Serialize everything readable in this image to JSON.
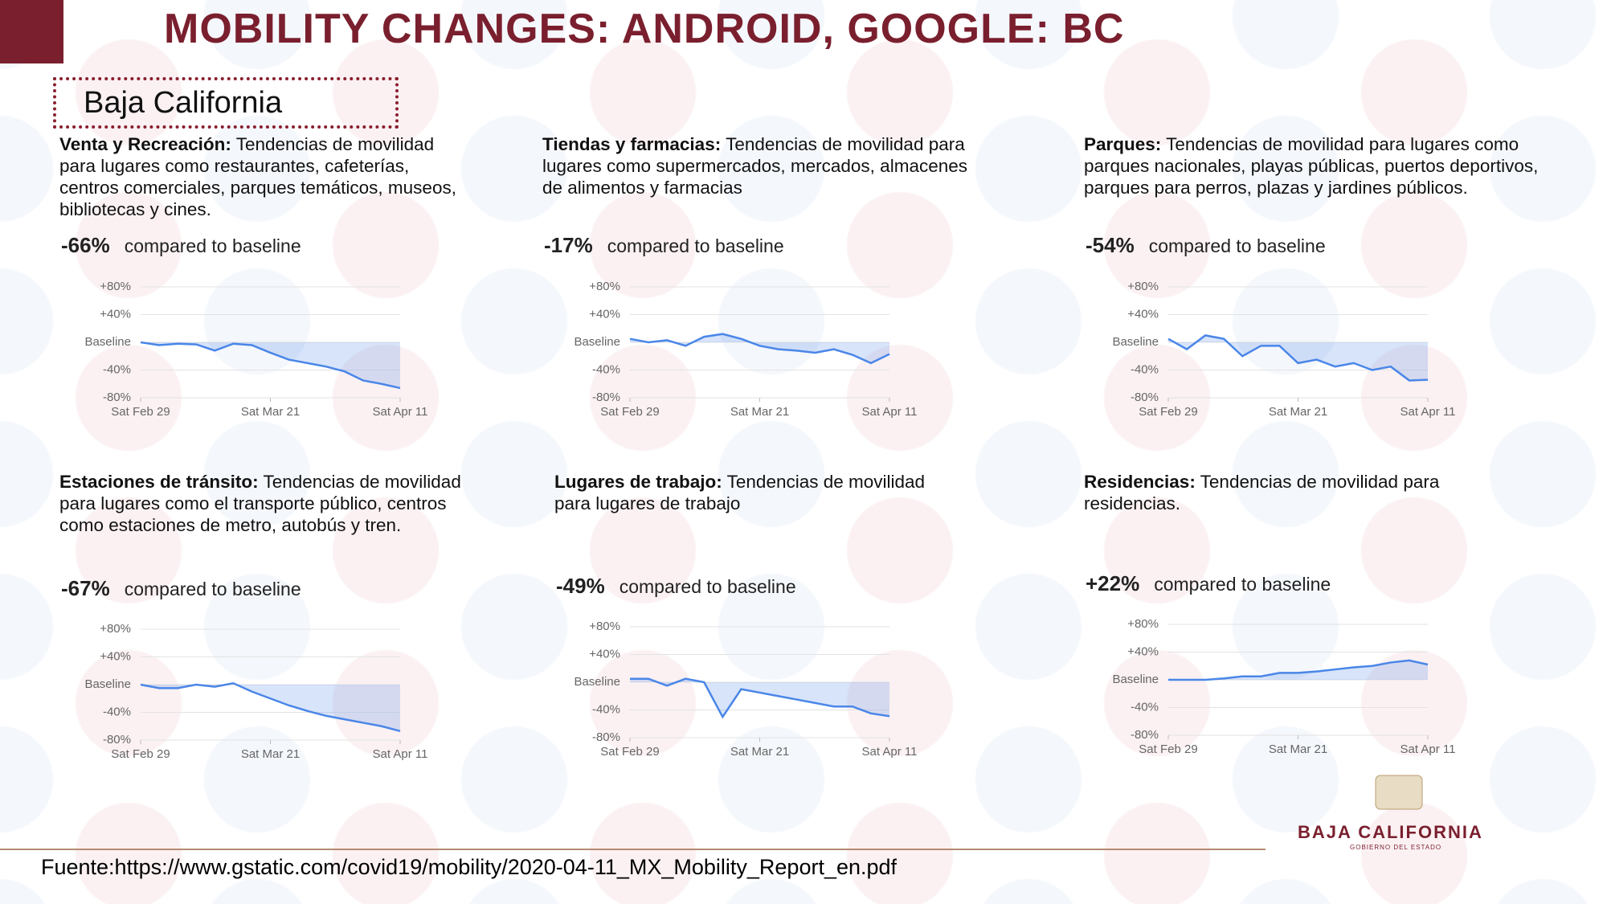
{
  "title": "MOBILITY CHANGES: ANDROID, GOOGLE: BC",
  "region": "Baja California",
  "source": "Fuente:https://www.gstatic.com/covid19/mobility/2020-04-11_MX_Mobility_Report_en.pdf",
  "logo": {
    "name": "BAJA CALIFORNIA",
    "subtitle": "GOBIERNO DEL ESTADO"
  },
  "chart_data": [
    {
      "type": "line",
      "label": "Venta y Recreación:",
      "description": "Tendencias de movilidad para lugares como restaurantes, cafeterías, centros comerciales, parques temáticos, museos, bibliotecas y cines.",
      "change": "-66%",
      "change_note": "compared to baseline",
      "x": [
        0,
        3,
        6,
        9,
        12,
        15,
        18,
        21,
        24,
        27,
        30,
        33,
        36,
        39,
        42
      ],
      "series": [
        {
          "color": "#4a86e8",
          "values": [
            0,
            -4,
            -2,
            -3,
            -12,
            -2,
            -4,
            -15,
            -25,
            -30,
            -35,
            -42,
            -55,
            -60,
            -66
          ]
        }
      ],
      "xlim": [
        0,
        42
      ],
      "xticks": [
        {
          "value": 0,
          "label": "Sat Feb 29"
        },
        {
          "value": 21,
          "label": "Sat Mar 21"
        },
        {
          "value": 42,
          "label": "Sat Apr 11"
        }
      ],
      "ylim": [
        -80,
        80
      ],
      "yticks": [
        {
          "value": 80,
          "label": "+80%"
        },
        {
          "value": 40,
          "label": "+40%"
        },
        {
          "value": 0,
          "label": "Baseline"
        },
        {
          "value": -40,
          "label": "-40%"
        },
        {
          "value": -80,
          "label": "-80%"
        }
      ],
      "grid": true
    },
    {
      "type": "line",
      "label": "Tiendas y farmacias:",
      "description": "Tendencias de movilidad para lugares como supermercados, mercados, almacenes de alimentos y farmacias",
      "change": "-17%",
      "change_note": "compared to baseline",
      "x": [
        0,
        3,
        6,
        9,
        12,
        15,
        18,
        21,
        24,
        27,
        30,
        33,
        36,
        39,
        42
      ],
      "series": [
        {
          "color": "#4a86e8",
          "values": [
            5,
            0,
            3,
            -5,
            8,
            12,
            5,
            -5,
            -10,
            -12,
            -15,
            -10,
            -18,
            -30,
            -17
          ]
        }
      ],
      "xlim": [
        0,
        42
      ],
      "xticks": [
        {
          "value": 0,
          "label": "Sat Feb 29"
        },
        {
          "value": 21,
          "label": "Sat Mar 21"
        },
        {
          "value": 42,
          "label": "Sat Apr 11"
        }
      ],
      "ylim": [
        -80,
        80
      ],
      "yticks": [
        {
          "value": 80,
          "label": "+80%"
        },
        {
          "value": 40,
          "label": "+40%"
        },
        {
          "value": 0,
          "label": "Baseline"
        },
        {
          "value": -40,
          "label": "-40%"
        },
        {
          "value": -80,
          "label": "-80%"
        }
      ],
      "grid": true
    },
    {
      "type": "line",
      "label": "Parques:",
      "description": "Tendencias de movilidad para lugares como parques nacionales, playas públicas, puertos deportivos, parques para perros, plazas y jardines públicos.",
      "change": "-54%",
      "change_note": "compared to baseline",
      "x": [
        0,
        3,
        6,
        9,
        12,
        15,
        18,
        21,
        24,
        27,
        30,
        33,
        36,
        39,
        42
      ],
      "series": [
        {
          "color": "#4a86e8",
          "values": [
            5,
            -10,
            10,
            5,
            -20,
            -5,
            -5,
            -30,
            -25,
            -35,
            -30,
            -40,
            -35,
            -55,
            -54
          ]
        }
      ],
      "xlim": [
        0,
        42
      ],
      "xticks": [
        {
          "value": 0,
          "label": "Sat Feb 29"
        },
        {
          "value": 21,
          "label": "Sat Mar 21"
        },
        {
          "value": 42,
          "label": "Sat Apr 11"
        }
      ],
      "ylim": [
        -80,
        80
      ],
      "yticks": [
        {
          "value": 80,
          "label": "+80%"
        },
        {
          "value": 40,
          "label": "+40%"
        },
        {
          "value": 0,
          "label": "Baseline"
        },
        {
          "value": -40,
          "label": "-40%"
        },
        {
          "value": -80,
          "label": "-80%"
        }
      ],
      "grid": true
    },
    {
      "type": "line",
      "label": "Estaciones de tránsito:",
      "description": "Tendencias de movilidad para lugares como el transporte público, centros como estaciones de metro, autobús y tren.",
      "change": "-67%",
      "change_note": "compared to baseline",
      "x": [
        0,
        3,
        6,
        9,
        12,
        15,
        18,
        21,
        24,
        27,
        30,
        33,
        36,
        39,
        42
      ],
      "series": [
        {
          "color": "#4a86e8",
          "values": [
            0,
            -5,
            -5,
            0,
            -3,
            2,
            -10,
            -20,
            -30,
            -38,
            -45,
            -50,
            -55,
            -60,
            -67
          ]
        }
      ],
      "xlim": [
        0,
        42
      ],
      "xticks": [
        {
          "value": 0,
          "label": "Sat Feb 29"
        },
        {
          "value": 21,
          "label": "Sat Mar 21"
        },
        {
          "value": 42,
          "label": "Sat Apr 11"
        }
      ],
      "ylim": [
        -80,
        80
      ],
      "yticks": [
        {
          "value": 80,
          "label": "+80%"
        },
        {
          "value": 40,
          "label": "+40%"
        },
        {
          "value": 0,
          "label": "Baseline"
        },
        {
          "value": -40,
          "label": "-40%"
        },
        {
          "value": -80,
          "label": "-80%"
        }
      ],
      "grid": true
    },
    {
      "type": "line",
      "label": "Lugares de trabajo:",
      "description": "Tendencias de movilidad para lugares de trabajo",
      "change": "-49%",
      "change_note": "compared to baseline",
      "x": [
        0,
        3,
        6,
        9,
        12,
        15,
        18,
        21,
        24,
        27,
        30,
        33,
        36,
        39,
        42
      ],
      "series": [
        {
          "color": "#4a86e8",
          "values": [
            5,
            5,
            -5,
            5,
            0,
            -50,
            -10,
            -15,
            -20,
            -25,
            -30,
            -35,
            -35,
            -45,
            -49
          ]
        }
      ],
      "xlim": [
        0,
        42
      ],
      "xticks": [
        {
          "value": 0,
          "label": "Sat Feb 29"
        },
        {
          "value": 21,
          "label": "Sat Mar 21"
        },
        {
          "value": 42,
          "label": "Sat Apr 11"
        }
      ],
      "ylim": [
        -80,
        80
      ],
      "yticks": [
        {
          "value": 80,
          "label": "+80%"
        },
        {
          "value": 40,
          "label": "+40%"
        },
        {
          "value": 0,
          "label": "Baseline"
        },
        {
          "value": -40,
          "label": "-40%"
        },
        {
          "value": -80,
          "label": "-80%"
        }
      ],
      "grid": true
    },
    {
      "type": "line",
      "label": "Residencias:",
      "description": "Tendencias de movilidad para residencias.",
      "change": "+22%",
      "change_note": "compared to baseline",
      "x": [
        0,
        3,
        6,
        9,
        12,
        15,
        18,
        21,
        24,
        27,
        30,
        33,
        36,
        39,
        42
      ],
      "series": [
        {
          "color": "#4a86e8",
          "values": [
            0,
            0,
            0,
            2,
            5,
            5,
            10,
            10,
            12,
            15,
            18,
            20,
            25,
            28,
            22
          ]
        }
      ],
      "xlim": [
        0,
        42
      ],
      "xticks": [
        {
          "value": 0,
          "label": "Sat Feb 29"
        },
        {
          "value": 21,
          "label": "Sat Mar 21"
        },
        {
          "value": 42,
          "label": "Sat Apr 11"
        }
      ],
      "ylim": [
        -80,
        80
      ],
      "yticks": [
        {
          "value": 80,
          "label": "+80%"
        },
        {
          "value": 40,
          "label": "+40%"
        },
        {
          "value": 0,
          "label": "Baseline"
        },
        {
          "value": -40,
          "label": "-40%"
        },
        {
          "value": -80,
          "label": "-80%"
        }
      ],
      "grid": true
    }
  ]
}
